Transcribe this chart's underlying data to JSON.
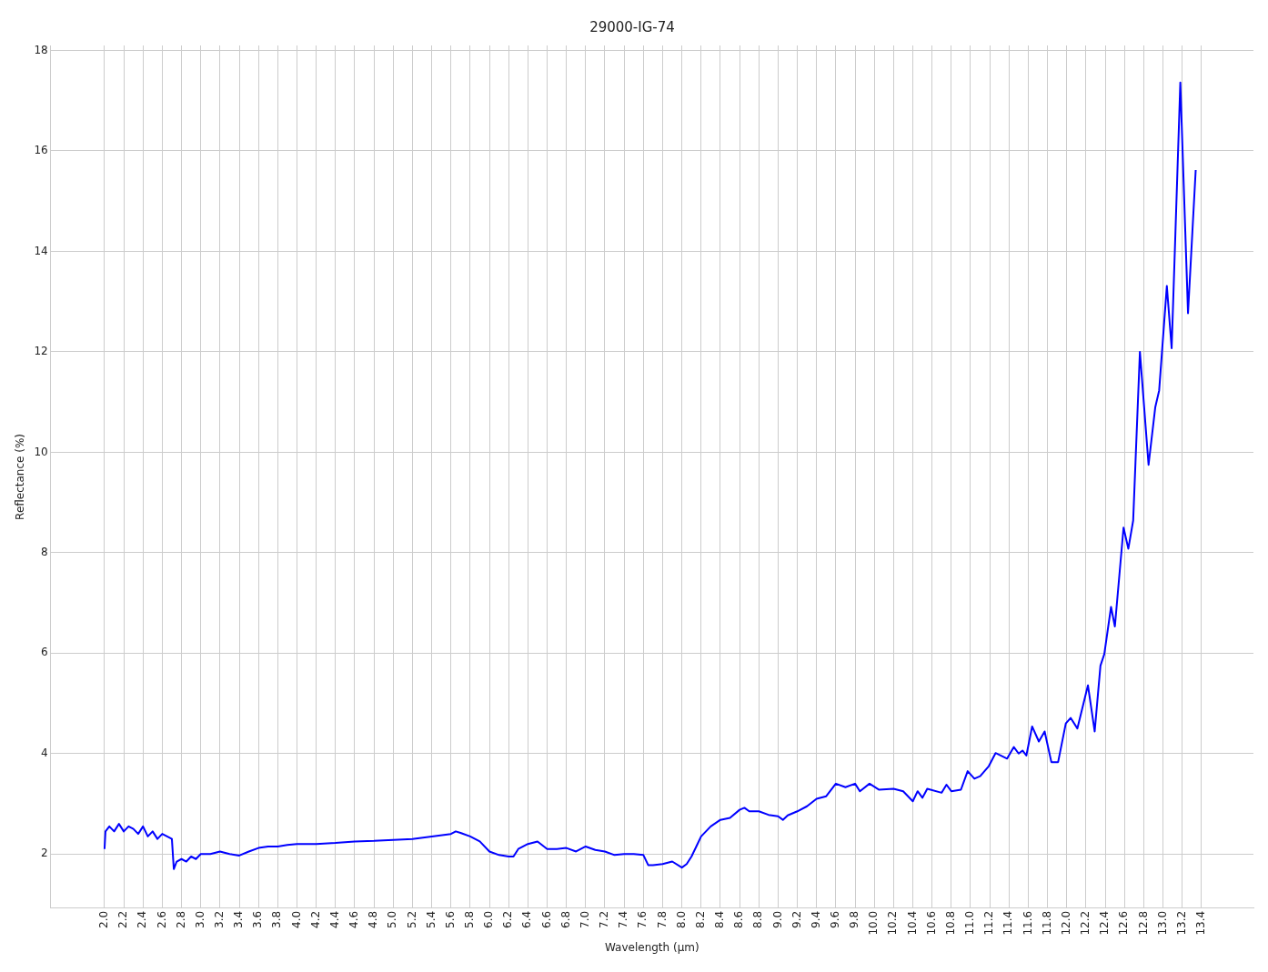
{
  "chart_data": {
    "type": "line",
    "title": "29000-IG-74",
    "xlabel": "Wavelength (µm)",
    "ylabel": "Reflectance (%)",
    "xlim": [
      1.44,
      13.94
    ],
    "ylim": [
      0.92,
      18.1
    ],
    "xticks": [
      {
        "value": 2,
        "label": "2.0"
      },
      2.2,
      2.4,
      2.6,
      2.8,
      {
        "value": 3,
        "label": "3.0"
      },
      3.2,
      3.4,
      3.6,
      3.8,
      {
        "value": 4,
        "label": "4.0"
      },
      4.2,
      4.4,
      4.6,
      4.8,
      {
        "value": 5,
        "label": "5.0"
      },
      5.2,
      5.4,
      5.6,
      5.8,
      {
        "value": 6,
        "label": "6.0"
      },
      6.2,
      6.4,
      6.6,
      6.8,
      {
        "value": 7,
        "label": "7.0"
      },
      7.2,
      7.4,
      7.6,
      7.8,
      {
        "value": 8,
        "label": "8.0"
      },
      8.2,
      8.4,
      8.6,
      8.8,
      {
        "value": 9,
        "label": "9.0"
      },
      9.2,
      9.4,
      9.6,
      9.8,
      {
        "value": 10,
        "label": "10.0"
      },
      10.2,
      10.4,
      10.6,
      10.8,
      {
        "value": 11,
        "label": "11.0"
      },
      11.2,
      11.4,
      11.6,
      11.8,
      {
        "value": 12,
        "label": "12.0"
      },
      12.2,
      12.4,
      12.6,
      12.8,
      {
        "value": 13,
        "label": "13.0"
      },
      13.2,
      13.4
    ],
    "yticks": [
      2,
      4,
      6,
      8,
      10,
      12,
      14,
      16,
      18
    ],
    "grid": true,
    "legend": false,
    "marker": "none",
    "line_style": "solid",
    "series": [
      {
        "color": "#0000ff",
        "x": [
          2.0,
          2.01,
          2.05,
          2.1,
          2.15,
          2.2,
          2.25,
          2.3,
          2.35,
          2.4,
          2.45,
          2.5,
          2.55,
          2.6,
          2.65,
          2.7,
          2.72,
          2.75,
          2.8,
          2.85,
          2.9,
          2.95,
          3.0,
          3.1,
          3.2,
          3.3,
          3.4,
          3.5,
          3.6,
          3.7,
          3.8,
          3.9,
          4.0,
          4.2,
          4.4,
          4.6,
          4.8,
          5.0,
          5.2,
          5.4,
          5.6,
          5.65,
          5.7,
          5.8,
          5.9,
          6.0,
          6.1,
          6.2,
          6.25,
          6.3,
          6.4,
          6.5,
          6.6,
          6.7,
          6.8,
          6.9,
          7.0,
          7.1,
          7.2,
          7.3,
          7.4,
          7.5,
          7.6,
          7.65,
          7.7,
          7.8,
          7.9,
          8.0,
          8.05,
          8.1,
          8.15,
          8.2,
          8.3,
          8.4,
          8.5,
          8.6,
          8.65,
          8.7,
          8.8,
          8.9,
          9.0,
          9.05,
          9.1,
          9.2,
          9.3,
          9.4,
          9.5,
          9.6,
          9.7,
          9.8,
          9.85,
          9.95,
          10.05,
          10.2,
          10.3,
          10.4,
          10.45,
          10.5,
          10.55,
          10.7,
          10.75,
          10.8,
          10.9,
          10.97,
          11.04,
          11.1,
          11.19,
          11.26,
          11.38,
          11.45,
          11.5,
          11.54,
          11.58,
          11.64,
          11.71,
          11.77,
          11.84,
          11.91,
          11.99,
          12.04,
          12.11,
          12.22,
          12.29,
          12.35,
          12.39,
          12.46,
          12.5,
          12.59,
          12.64,
          12.69,
          12.76,
          12.85,
          12.92,
          12.96,
          13.04,
          13.09,
          13.18,
          13.26,
          13.34
        ],
        "values": [
          2.1,
          2.45,
          2.55,
          2.45,
          2.6,
          2.45,
          2.55,
          2.5,
          2.4,
          2.55,
          2.35,
          2.45,
          2.3,
          2.4,
          2.35,
          2.3,
          1.7,
          1.85,
          1.9,
          1.85,
          1.95,
          1.9,
          2.0,
          2.0,
          2.05,
          2.0,
          1.97,
          2.05,
          2.12,
          2.15,
          2.15,
          2.18,
          2.2,
          2.2,
          2.22,
          2.25,
          2.26,
          2.28,
          2.3,
          2.35,
          2.4,
          2.45,
          2.42,
          2.35,
          2.25,
          2.05,
          1.98,
          1.95,
          1.95,
          2.1,
          2.2,
          2.25,
          2.1,
          2.1,
          2.12,
          2.05,
          2.15,
          2.08,
          2.05,
          1.98,
          2.0,
          2.0,
          1.98,
          1.78,
          1.78,
          1.8,
          1.85,
          1.73,
          1.8,
          1.95,
          2.15,
          2.35,
          2.55,
          2.68,
          2.72,
          2.88,
          2.92,
          2.85,
          2.85,
          2.78,
          2.75,
          2.68,
          2.77,
          2.85,
          2.95,
          3.1,
          3.15,
          3.4,
          3.33,
          3.4,
          3.25,
          3.4,
          3.28,
          3.3,
          3.25,
          3.05,
          3.25,
          3.12,
          3.3,
          3.22,
          3.38,
          3.25,
          3.28,
          3.65,
          3.5,
          3.55,
          3.75,
          4.01,
          3.9,
          4.13,
          4.0,
          4.06,
          3.96,
          4.54,
          4.24,
          4.44,
          3.83,
          3.83,
          4.6,
          4.71,
          4.5,
          5.36,
          4.44,
          5.75,
          5.98,
          6.92,
          6.53,
          8.5,
          8.08,
          8.64,
          12.0,
          9.75,
          10.9,
          11.23,
          13.31,
          12.07,
          17.36,
          12.77,
          15.62
        ]
      }
    ]
  }
}
